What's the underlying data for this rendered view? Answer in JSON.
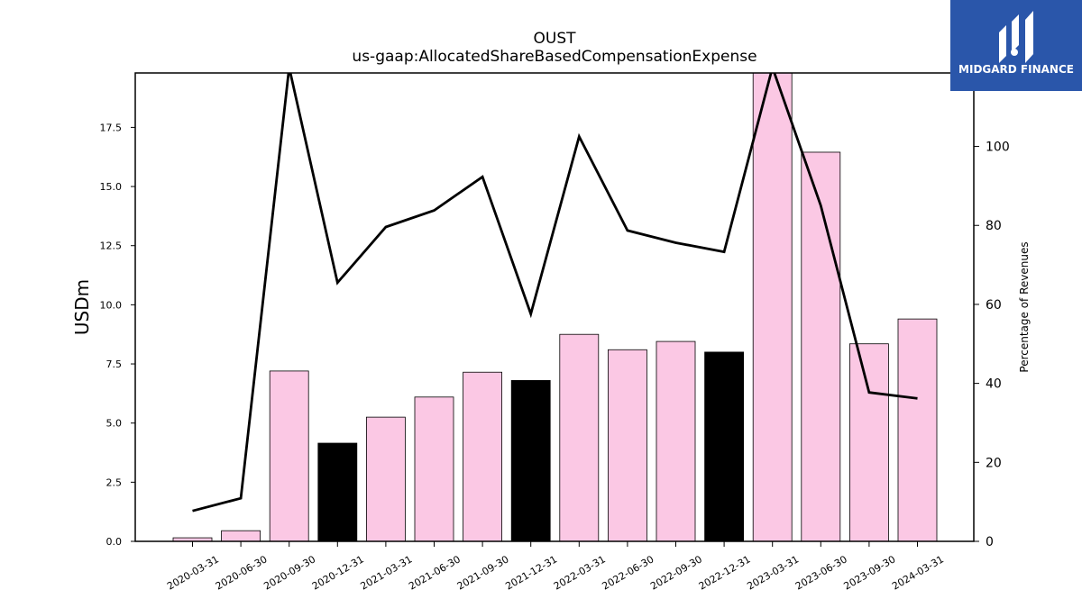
{
  "chart_data": {
    "type": "bar",
    "title": "OUST",
    "subtitle": "us-gaap:AllocatedShareBasedCompensationExpense",
    "ylabel": "USDm",
    "ylabel_right": "Percentage of Revenues",
    "categories": [
      "2020-03-31",
      "2020-06-30",
      "2020-09-30",
      "2020-12-31",
      "2021-03-31",
      "2021-06-30",
      "2021-09-30",
      "2021-12-31",
      "2022-03-31",
      "2022-06-30",
      "2022-09-30",
      "2022-12-31",
      "2023-03-31",
      "2023-06-30",
      "2023-09-30",
      "2024-03-31"
    ],
    "series": [
      {
        "type": "bar",
        "axis": "left",
        "values": [
          0.15,
          0.45,
          7.2,
          4.15,
          5.25,
          6.1,
          7.15,
          6.8,
          8.75,
          8.1,
          8.45,
          8.0,
          19.8,
          16.45,
          8.35,
          9.4
        ],
        "colors": [
          "#fbc8e4",
          "#fbc8e4",
          "#fbc8e4",
          "#000000",
          "#fbc8e4",
          "#fbc8e4",
          "#fbc8e4",
          "#000000",
          "#fbc8e4",
          "#fbc8e4",
          "#fbc8e4",
          "#000000",
          "#fbc8e4",
          "#fbc8e4",
          "#fbc8e4",
          "#fbc8e4"
        ]
      },
      {
        "type": "line",
        "axis": "right",
        "values": [
          7.7,
          10.9,
          120,
          65.5,
          79.6,
          83.8,
          92.3,
          57.6,
          102.5,
          78.7,
          75.6,
          73.3,
          120,
          85,
          37.7,
          36.2
        ],
        "color": "#000000"
      }
    ],
    "ylim": [
      0,
      19.8
    ],
    "yticks": [
      "0.0",
      "2.5",
      "5.0",
      "7.5",
      "10.0",
      "12.5",
      "15.0",
      "17.5"
    ],
    "ylim_right": [
      0,
      118.6
    ],
    "yticks_right": [
      "0",
      "20",
      "40",
      "60",
      "80",
      "100"
    ],
    "grid": false,
    "legend": "none"
  },
  "logo": {
    "text": "MIDGARD FINANCE",
    "background": "#2a56aa"
  }
}
